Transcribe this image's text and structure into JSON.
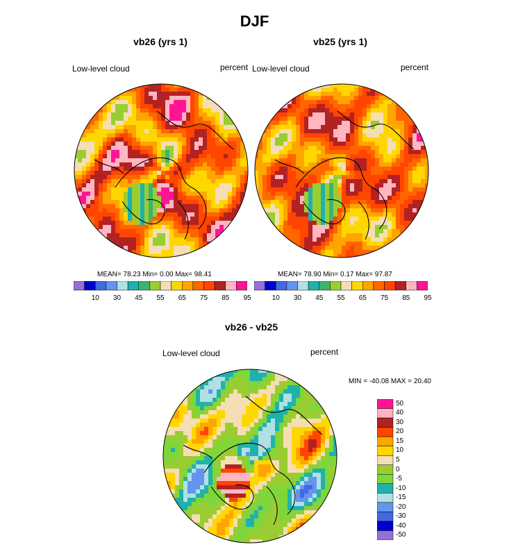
{
  "title": "DJF",
  "panels": [
    {
      "title": "vb26 (yrs 1)",
      "left_label": "Low-level cloud",
      "right_label": "percent",
      "stats": {
        "mean": "78.23",
        "min": "0.00",
        "max": "98.41"
      },
      "stats_text": "MEAN=  78.23   Min=   0.00   Max=  98.41"
    },
    {
      "title": "vb25 (yrs 1)",
      "left_label": "Low-level cloud",
      "right_label": "percent",
      "stats": {
        "mean": "78.90",
        "min": "0.17",
        "max": "97.87"
      },
      "stats_text": "MEAN=  78.90   Min=   0.17   Max=  97.87"
    },
    {
      "title": "vb26 - vb25",
      "left_label": "Low-level cloud",
      "right_label": "percent",
      "stats": {
        "min": "-40.08",
        "max": "20.40"
      },
      "stats_text": "MIN = -40.08 MAX =  20.40"
    }
  ],
  "chart_data": [
    {
      "type": "heatmap",
      "projection": "north polar stereographic",
      "title": "vb26 (yrs 1)",
      "variable": "Low-level cloud",
      "units": "percent",
      "mean": 78.23,
      "min": 0.0,
      "max": 98.41,
      "colorbar": {
        "tick_labels": [
          "10",
          "30",
          "45",
          "55",
          "65",
          "75",
          "85",
          "95"
        ],
        "colors": [
          "#9370db",
          "#0000cd",
          "#4169e1",
          "#6495ed",
          "#b0e0e6",
          "#20b2aa",
          "#3cb371",
          "#9acd32",
          "#f5deb3",
          "#ffd700",
          "#ffa500",
          "#ff6600",
          "#ff4500",
          "#b22222",
          "#ffb6c1",
          "#ff1493"
        ]
      }
    },
    {
      "type": "heatmap",
      "projection": "north polar stereographic",
      "title": "vb25 (yrs 1)",
      "variable": "Low-level cloud",
      "units": "percent",
      "mean": 78.9,
      "min": 0.17,
      "max": 97.87,
      "colorbar": {
        "tick_labels": [
          "10",
          "30",
          "45",
          "55",
          "65",
          "75",
          "85",
          "95"
        ],
        "colors": [
          "#9370db",
          "#0000cd",
          "#4169e1",
          "#6495ed",
          "#b0e0e6",
          "#20b2aa",
          "#3cb371",
          "#9acd32",
          "#f5deb3",
          "#ffd700",
          "#ffa500",
          "#ff6600",
          "#ff4500",
          "#b22222",
          "#ffb6c1",
          "#ff1493"
        ]
      }
    },
    {
      "type": "heatmap",
      "projection": "north polar stereographic",
      "title": "vb26 - vb25",
      "variable": "Low-level cloud",
      "units": "percent",
      "min": -40.08,
      "max": 20.4,
      "colorbar": {
        "tick_labels": [
          "50",
          "40",
          "30",
          "20",
          "15",
          "10",
          "5",
          "0",
          "-5",
          "-10",
          "-15",
          "-20",
          "-30",
          "-40",
          "-50"
        ],
        "colors": [
          "#ff1493",
          "#ffb6c1",
          "#b22222",
          "#ff4500",
          "#ffa500",
          "#ffd700",
          "#f5deb3",
          "#9acd32",
          "#7fd63a",
          "#20b2aa",
          "#b0e0e6",
          "#6495ed",
          "#4169e1",
          "#0000cd",
          "#9370db"
        ]
      }
    }
  ]
}
